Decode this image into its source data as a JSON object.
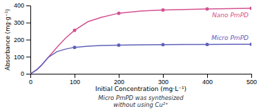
{
  "chart_data": {
    "type": "line",
    "xlabel": "Initial Concentration (mg·L⁻¹)",
    "ylabel": "Absorbance (mg·g⁻¹)",
    "x": [
      0,
      5,
      15,
      25,
      40,
      60,
      80,
      100,
      130,
      160,
      200,
      250,
      300,
      350,
      400,
      450,
      500
    ],
    "series": [
      {
        "name": "Nano PmPD",
        "color": "#d45090",
        "marker": "circle",
        "values": [
          0,
          8,
          25,
          50,
          95,
          155,
          210,
          255,
          305,
          330,
          355,
          368,
          374,
          377,
          380,
          382,
          384
        ],
        "marker_x": [
          100,
          200,
          300,
          400,
          500
        ],
        "marker_values": [
          255,
          355,
          374,
          380,
          384
        ]
      },
      {
        "name": "Micro PmPD",
        "color": "#6060bb",
        "marker": "circle",
        "values": [
          0,
          8,
          25,
          50,
          95,
          130,
          145,
          155,
          162,
          166,
          168,
          170,
          171,
          172,
          172,
          173,
          173
        ],
        "marker_x": [
          100,
          200,
          300,
          400,
          500
        ],
        "marker_values": [
          155,
          168,
          171,
          172,
          173
        ]
      }
    ],
    "xlim": [
      0,
      500
    ],
    "ylim": [
      0,
      400
    ],
    "xticks": [
      0,
      100,
      200,
      300,
      400,
      500
    ],
    "yticks": [
      0,
      100,
      200,
      300,
      400
    ],
    "grid": false,
    "note": [
      "Micro PmPD was synthesized",
      "without using Cu²⁺"
    ]
  }
}
